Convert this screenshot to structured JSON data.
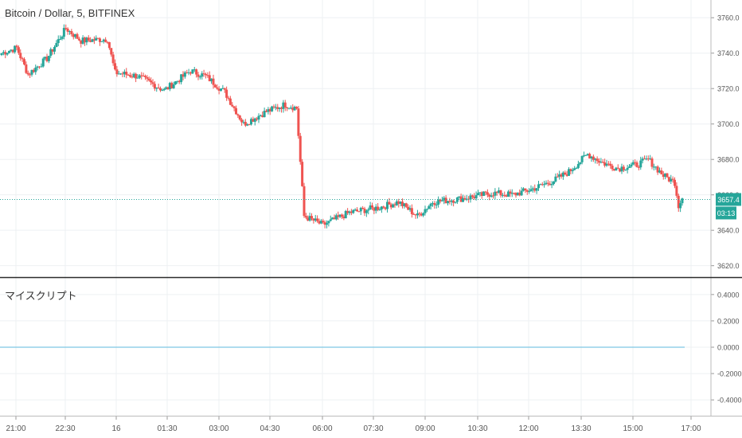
{
  "chart_title": "Bitcoin / Dollar, 5, BITFINEX",
  "indicator_title": "マイスクリプト",
  "price_tag": "3657.4",
  "time_tag": "03:13",
  "colors": {
    "up": "#26a69a",
    "down": "#ef5350",
    "grid": "#eef0f3",
    "axis_text": "#555555",
    "tag_bg": "#26a69a",
    "indicator_line": "#7ec8e3",
    "divider": "#2b2b2b"
  },
  "chart_data": [
    {
      "type": "candlestick",
      "title": "Bitcoin / Dollar, 5, BITFINEX",
      "ylim": [
        3614,
        3770
      ],
      "y_ticks": [
        "3620.0",
        "3640.0",
        "3660.0",
        "3680.0",
        "3700.0",
        "3720.0",
        "3740.0",
        "3760.0"
      ],
      "x_ticks": [
        "21:00",
        "22:30",
        "16",
        "01:30",
        "03:00",
        "04:30",
        "06:00",
        "07:30",
        "09:00",
        "10:30",
        "12:00",
        "13:30",
        "15:00",
        "17:00"
      ],
      "last_price": 3657.4,
      "grid": true,
      "anchors": [
        [
          0,
          3740
        ],
        [
          8,
          3743
        ],
        [
          14,
          3728
        ],
        [
          24,
          3737
        ],
        [
          34,
          3754
        ],
        [
          42,
          3747
        ],
        [
          56,
          3748
        ],
        [
          60,
          3729
        ],
        [
          72,
          3727
        ],
        [
          86,
          3719
        ],
        [
          100,
          3730
        ],
        [
          108,
          3727
        ],
        [
          118,
          3718
        ],
        [
          128,
          3700
        ],
        [
          140,
          3707
        ],
        [
          150,
          3711
        ],
        [
          156,
          3709
        ],
        [
          160,
          3648
        ],
        [
          170,
          3643
        ],
        [
          184,
          3650
        ],
        [
          200,
          3653
        ],
        [
          210,
          3656
        ],
        [
          220,
          3648
        ],
        [
          228,
          3656
        ],
        [
          244,
          3658
        ],
        [
          260,
          3661
        ],
        [
          270,
          3660
        ],
        [
          280,
          3663
        ],
        [
          292,
          3668
        ],
        [
          300,
          3673
        ],
        [
          310,
          3683
        ],
        [
          318,
          3678
        ],
        [
          326,
          3675
        ],
        [
          336,
          3677
        ],
        [
          342,
          3680
        ],
        [
          350,
          3671
        ],
        [
          356,
          3667
        ],
        [
          358,
          3654
        ],
        [
          360,
          3658
        ]
      ]
    },
    {
      "type": "line",
      "title": "マイスクリプト",
      "ylim": [
        -0.52,
        0.52
      ],
      "y_ticks": [
        "0.4000",
        "0.2000",
        "0.0000",
        "-0.2000",
        "-0.4000"
      ],
      "value": 0.0,
      "grid": true
    }
  ]
}
